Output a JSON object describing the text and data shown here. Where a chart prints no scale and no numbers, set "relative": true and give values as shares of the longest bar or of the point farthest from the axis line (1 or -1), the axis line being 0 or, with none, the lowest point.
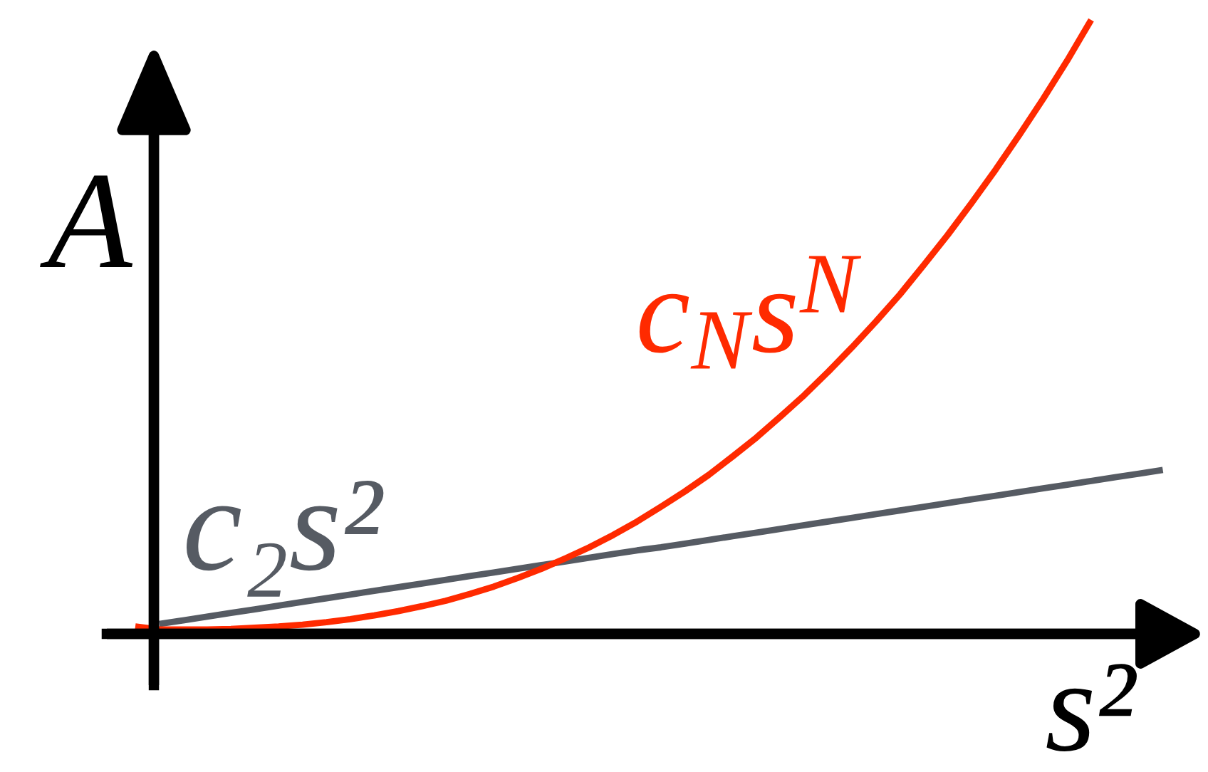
{
  "chart_data": {
    "type": "line",
    "relative": true,
    "xlabel": "s²",
    "ylabel": "A",
    "tick_labels": false,
    "categories": [
      null,
      null,
      null,
      null,
      null,
      null,
      null,
      null,
      null,
      null,
      null,
      null,
      null,
      null,
      null,
      null,
      null,
      null,
      null,
      null,
      null,
      null,
      null,
      null,
      null,
      null,
      null,
      null,
      null,
      null,
      null,
      null,
      null,
      null,
      null,
      null,
      null,
      null,
      null,
      null,
      null,
      null,
      null,
      null
    ],
    "series": [
      {
        "name": "c₂s²",
        "color": "#565b63",
        "values": [
          null,
          0.016,
          0.022,
          0.028,
          0.034,
          0.04,
          0.046,
          0.052,
          0.058,
          0.064,
          0.07,
          0.076,
          0.082,
          0.088,
          0.094,
          0.1,
          0.106,
          0.112,
          0.118,
          0.124,
          0.13,
          0.136,
          0.141,
          0.147,
          0.153,
          0.159,
          0.165,
          0.171,
          0.177,
          0.183,
          0.189,
          0.195,
          0.201,
          0.207,
          0.213,
          0.219,
          0.225,
          0.231,
          0.237,
          0.243,
          0.249,
          0.255,
          0.261,
          0.267
        ]
      },
      {
        "name": "c$_{N}$s$^{N}$",
        "color": "#ff2a00",
        "values": [
          0.012,
          0.007,
          0.007,
          0.007,
          0.008,
          0.01,
          0.012,
          0.015,
          0.019,
          0.024,
          0.03,
          0.037,
          0.045,
          0.054,
          0.065,
          0.077,
          0.091,
          0.106,
          0.123,
          0.141,
          0.161,
          0.183,
          0.207,
          0.232,
          0.259,
          0.289,
          0.32,
          0.354,
          0.389,
          0.427,
          0.467,
          0.509,
          0.553,
          0.601,
          0.65,
          0.702,
          0.756,
          0.813,
          0.872,
          0.934,
          1.0,
          null,
          null,
          null
        ]
      }
    ]
  }
}
